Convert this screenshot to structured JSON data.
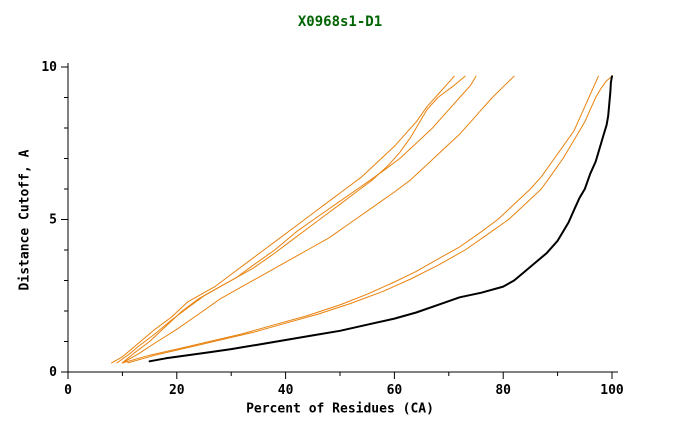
{
  "chart_data": {
    "type": "line",
    "title": "X0968s1-D1",
    "xlabel": "Percent of Residues (CA)",
    "ylabel": "Distance Cutoff, A",
    "xlim": [
      0,
      100
    ],
    "ylim": [
      0,
      10
    ],
    "x_ticks": [
      0,
      20,
      40,
      60,
      80,
      100
    ],
    "x_minor_ticks": [
      10,
      30,
      50,
      70,
      90
    ],
    "y_ticks": [
      0,
      5,
      10
    ],
    "y_minor_ticks": [
      1,
      2,
      3,
      4,
      6,
      7,
      8,
      9
    ],
    "grid": false,
    "legend": "none",
    "colors": {
      "title": "#006400",
      "axis": "#000000",
      "tick_labels": "#000000",
      "orange_series": "#e8820e",
      "black_series": "#000000"
    },
    "series": [
      {
        "name": "orange-curve-1",
        "color": "#e8820e",
        "width": 1,
        "points": [
          [
            8,
            0.3
          ],
          [
            10,
            0.5
          ],
          [
            12,
            0.8
          ],
          [
            14,
            1.1
          ],
          [
            16,
            1.4
          ],
          [
            19,
            1.8
          ],
          [
            22,
            2.3
          ],
          [
            25,
            2.6
          ],
          [
            27,
            2.8
          ],
          [
            30,
            3.2
          ],
          [
            33,
            3.6
          ],
          [
            36,
            4.0
          ],
          [
            39,
            4.4
          ],
          [
            42,
            4.8
          ],
          [
            45,
            5.2
          ],
          [
            48,
            5.6
          ],
          [
            51,
            6.0
          ],
          [
            54,
            6.4
          ],
          [
            57,
            6.9
          ],
          [
            60,
            7.4
          ],
          [
            62,
            7.8
          ],
          [
            64,
            8.2
          ],
          [
            66,
            8.7
          ],
          [
            68,
            9.1
          ],
          [
            70,
            9.5
          ],
          [
            71,
            9.7
          ]
        ]
      },
      {
        "name": "orange-curve-2",
        "color": "#e8820e",
        "width": 1,
        "points": [
          [
            9,
            0.3
          ],
          [
            11,
            0.55
          ],
          [
            13,
            0.85
          ],
          [
            16,
            1.25
          ],
          [
            19,
            1.7
          ],
          [
            22,
            2.1
          ],
          [
            25,
            2.5
          ],
          [
            28,
            2.8
          ],
          [
            31,
            3.1
          ],
          [
            34,
            3.5
          ],
          [
            38,
            4.0
          ],
          [
            42,
            4.6
          ],
          [
            46,
            5.1
          ],
          [
            50,
            5.6
          ],
          [
            54,
            6.1
          ],
          [
            58,
            6.6
          ],
          [
            61,
            7.0
          ],
          [
            64,
            7.5
          ],
          [
            67,
            8.0
          ],
          [
            70,
            8.6
          ],
          [
            72,
            9.0
          ],
          [
            74,
            9.4
          ],
          [
            75,
            9.7
          ]
        ]
      },
      {
        "name": "orange-curve-3",
        "color": "#e8820e",
        "width": 1,
        "points": [
          [
            10,
            0.3
          ],
          [
            12,
            0.6
          ],
          [
            15,
            1.0
          ],
          [
            18,
            1.5
          ],
          [
            21,
            2.0
          ],
          [
            24,
            2.4
          ],
          [
            27,
            2.7
          ],
          [
            30,
            3.0
          ],
          [
            34,
            3.4
          ],
          [
            38,
            3.9
          ],
          [
            41,
            4.3
          ],
          [
            44,
            4.7
          ],
          [
            47,
            5.1
          ],
          [
            50,
            5.5
          ],
          [
            53,
            5.9
          ],
          [
            56,
            6.3
          ],
          [
            59,
            6.8
          ],
          [
            61,
            7.2
          ],
          [
            63,
            7.7
          ],
          [
            65,
            8.3
          ],
          [
            66,
            8.6
          ],
          [
            68,
            9.0
          ],
          [
            71,
            9.4
          ],
          [
            73,
            9.7
          ]
        ]
      },
      {
        "name": "orange-curve-4",
        "color": "#e8820e",
        "width": 1,
        "points": [
          [
            10,
            0.3
          ],
          [
            13,
            0.6
          ],
          [
            16,
            0.95
          ],
          [
            20,
            1.4
          ],
          [
            24,
            1.9
          ],
          [
            28,
            2.4
          ],
          [
            32,
            2.8
          ],
          [
            36,
            3.2
          ],
          [
            40,
            3.6
          ],
          [
            44,
            4.0
          ],
          [
            48,
            4.4
          ],
          [
            52,
            4.9
          ],
          [
            56,
            5.4
          ],
          [
            60,
            5.9
          ],
          [
            63,
            6.3
          ],
          [
            66,
            6.8
          ],
          [
            69,
            7.3
          ],
          [
            72,
            7.8
          ],
          [
            74,
            8.2
          ],
          [
            76,
            8.6
          ],
          [
            78,
            9.0
          ],
          [
            80,
            9.35
          ],
          [
            82,
            9.7
          ]
        ]
      },
      {
        "name": "orange-curve-5",
        "color": "#e8820e",
        "width": 1,
        "points": [
          [
            10,
            0.3
          ],
          [
            15,
            0.55
          ],
          [
            20,
            0.75
          ],
          [
            26,
            1.0
          ],
          [
            32,
            1.25
          ],
          [
            38,
            1.55
          ],
          [
            44,
            1.85
          ],
          [
            50,
            2.2
          ],
          [
            55,
            2.55
          ],
          [
            60,
            2.95
          ],
          [
            64,
            3.3
          ],
          [
            68,
            3.7
          ],
          [
            72,
            4.1
          ],
          [
            76,
            4.6
          ],
          [
            79,
            5.0
          ],
          [
            82,
            5.5
          ],
          [
            85,
            6.0
          ],
          [
            87,
            6.4
          ],
          [
            89,
            6.9
          ],
          [
            91,
            7.4
          ],
          [
            93,
            7.9
          ],
          [
            94,
            8.3
          ],
          [
            95,
            8.7
          ],
          [
            96,
            9.1
          ],
          [
            97,
            9.5
          ],
          [
            97.5,
            9.7
          ]
        ]
      },
      {
        "name": "orange-curve-6",
        "color": "#e8820e",
        "width": 1,
        "points": [
          [
            11,
            0.3
          ],
          [
            16,
            0.55
          ],
          [
            22,
            0.8
          ],
          [
            28,
            1.05
          ],
          [
            34,
            1.3
          ],
          [
            40,
            1.6
          ],
          [
            46,
            1.9
          ],
          [
            52,
            2.25
          ],
          [
            58,
            2.65
          ],
          [
            63,
            3.05
          ],
          [
            68,
            3.5
          ],
          [
            73,
            4.0
          ],
          [
            77,
            4.5
          ],
          [
            81,
            5.0
          ],
          [
            84,
            5.5
          ],
          [
            87,
            6.0
          ],
          [
            89,
            6.5
          ],
          [
            91,
            7.0
          ],
          [
            93,
            7.6
          ],
          [
            95,
            8.2
          ],
          [
            96,
            8.6
          ],
          [
            97,
            9.0
          ],
          [
            98,
            9.3
          ],
          [
            99,
            9.55
          ],
          [
            100,
            9.7
          ]
        ]
      },
      {
        "name": "black-curve",
        "color": "#000000",
        "width": 2,
        "points": [
          [
            15,
            0.35
          ],
          [
            18,
            0.45
          ],
          [
            22,
            0.55
          ],
          [
            26,
            0.65
          ],
          [
            30,
            0.75
          ],
          [
            35,
            0.9
          ],
          [
            40,
            1.05
          ],
          [
            45,
            1.2
          ],
          [
            50,
            1.35
          ],
          [
            55,
            1.55
          ],
          [
            60,
            1.75
          ],
          [
            64,
            1.95
          ],
          [
            68,
            2.2
          ],
          [
            72,
            2.45
          ],
          [
            76,
            2.6
          ],
          [
            80,
            2.8
          ],
          [
            82,
            3.0
          ],
          [
            84,
            3.3
          ],
          [
            86,
            3.6
          ],
          [
            88,
            3.9
          ],
          [
            90,
            4.3
          ],
          [
            91,
            4.6
          ],
          [
            92,
            4.9
          ],
          [
            93,
            5.3
          ],
          [
            94,
            5.7
          ],
          [
            95,
            6.0
          ],
          [
            96,
            6.5
          ],
          [
            97,
            6.9
          ],
          [
            97.5,
            7.2
          ],
          [
            98,
            7.5
          ],
          [
            98.5,
            7.8
          ],
          [
            99,
            8.1
          ],
          [
            99.3,
            8.4
          ],
          [
            99.5,
            8.8
          ],
          [
            99.7,
            9.2
          ],
          [
            99.8,
            9.5
          ],
          [
            100,
            9.7
          ]
        ]
      }
    ]
  }
}
